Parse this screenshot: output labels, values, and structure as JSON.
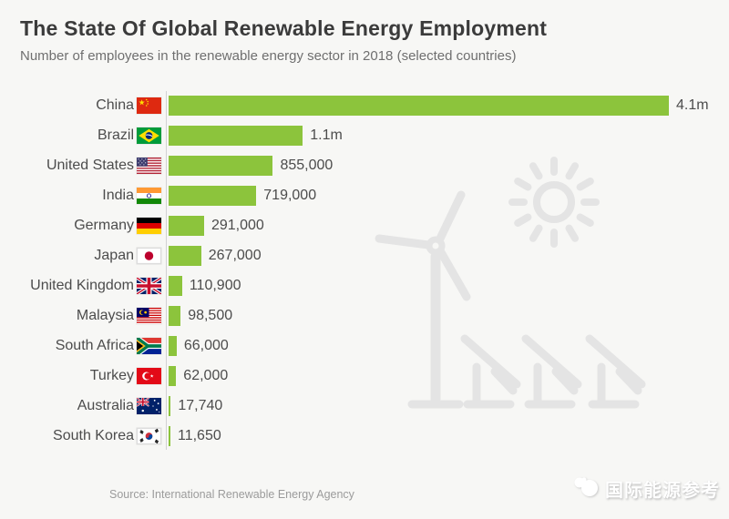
{
  "header": {
    "title": "The State Of Global Renewable Energy Employment",
    "subtitle": "Number of employees in the renewable energy sector in 2018 (selected countries)"
  },
  "chart_data": {
    "type": "bar",
    "orientation": "horizontal",
    "title": "The State Of Global Renewable Energy Employment",
    "subtitle": "Number of employees in the renewable energy sector in 2018 (selected countries)",
    "categories": [
      "China",
      "Brazil",
      "United States",
      "India",
      "Germany",
      "Japan",
      "United Kingdom",
      "Malaysia",
      "South Africa",
      "Turkey",
      "Australia",
      "South Korea"
    ],
    "values": [
      4100000,
      1100000,
      855000,
      719000,
      291000,
      267000,
      110900,
      98500,
      66000,
      62000,
      17740,
      11650
    ],
    "value_labels": [
      "4.1m",
      "1.1m",
      "855,000",
      "719,000",
      "291,000",
      "267,000",
      "110,900",
      "98,500",
      "66,000",
      "62,000",
      "17,740",
      "11,650"
    ],
    "flags": [
      "china",
      "brazil",
      "usa",
      "india",
      "germany",
      "japan",
      "uk",
      "malaysia",
      "south-africa",
      "turkey",
      "australia",
      "south-korea"
    ],
    "xlim": [
      0,
      4100000
    ],
    "grid": false,
    "legend": "none",
    "bar_color": "#8cc43c",
    "axis_color": "#d2d2d2"
  },
  "source": {
    "label": "Source: International Renewable Energy Agency"
  },
  "watermark": {
    "text": "国际能源参考",
    "logo": "panda-logo-icon"
  },
  "illustration": {
    "items": [
      "wind-turbine-icon",
      "sun-icon",
      "solar-panel-icons"
    ],
    "stroke_color": "#e4e4e4"
  },
  "colors": {
    "background": "#f7f7f5",
    "title_text": "#3b3b3b",
    "subtitle_text": "#6f6f6f",
    "label_text": "#4c4c4c",
    "source_text": "#9b9b9b"
  }
}
